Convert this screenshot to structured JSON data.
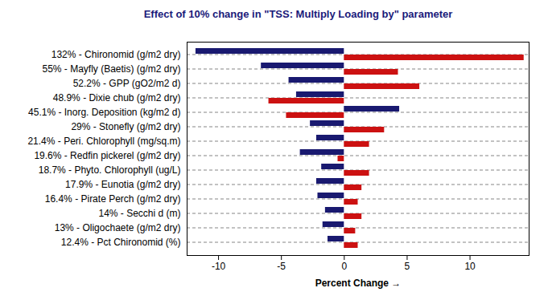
{
  "chart_data": {
    "type": "bar",
    "orientation": "horizontal",
    "title": "Effect of 10% change in \"TSS: Multiply Loading by\" parameter",
    "x_label": "Percent Change",
    "categories": [
      "132% - Chironomid (g/m2 dry)",
      "55% - Mayfly (Baetis) (g/m2 dry)",
      "52.2% - GPP (gO2/m2 d)",
      "48.9% - Dixie chub (g/m2 dry)",
      "45.1% - Inorg. Deposition (kg/m2 d)",
      "29% - Stonefly (g/m2 dry)",
      "21.4% - Peri. Chlorophyll (mg/sq.m)",
      "19.6% - Redfin pickerel (g/m2 dry)",
      "18.7% - Phyto. Chlorophyll (ug/L)",
      "17.9% - Eunotia (g/m2 dry)",
      "16.4% - Pirate Perch (g/m2 dry)",
      "14% - Secchi d (m)",
      "13% - Oligochaete (g/m2 dry)",
      "12.4% - Pct Chironomid (%)"
    ],
    "series": [
      {
        "color": "#191970",
        "values": [
          -11.8,
          -6.6,
          -4.4,
          -3.8,
          4.4,
          -2.7,
          -2.2,
          -3.5,
          -1.8,
          -2.2,
          -2.1,
          -1.5,
          -1.7,
          -1.3
        ]
      },
      {
        "color": "#cc1111",
        "values": [
          14.3,
          4.3,
          6.0,
          -6.0,
          -4.6,
          3.2,
          2.0,
          -0.5,
          2.0,
          1.4,
          1.1,
          1.4,
          0.9,
          1.1
        ]
      }
    ],
    "xlim": [
      -12.5,
      14.7
    ],
    "xticks": [
      -10,
      -5,
      0,
      5,
      10
    ],
    "grid": true
  }
}
